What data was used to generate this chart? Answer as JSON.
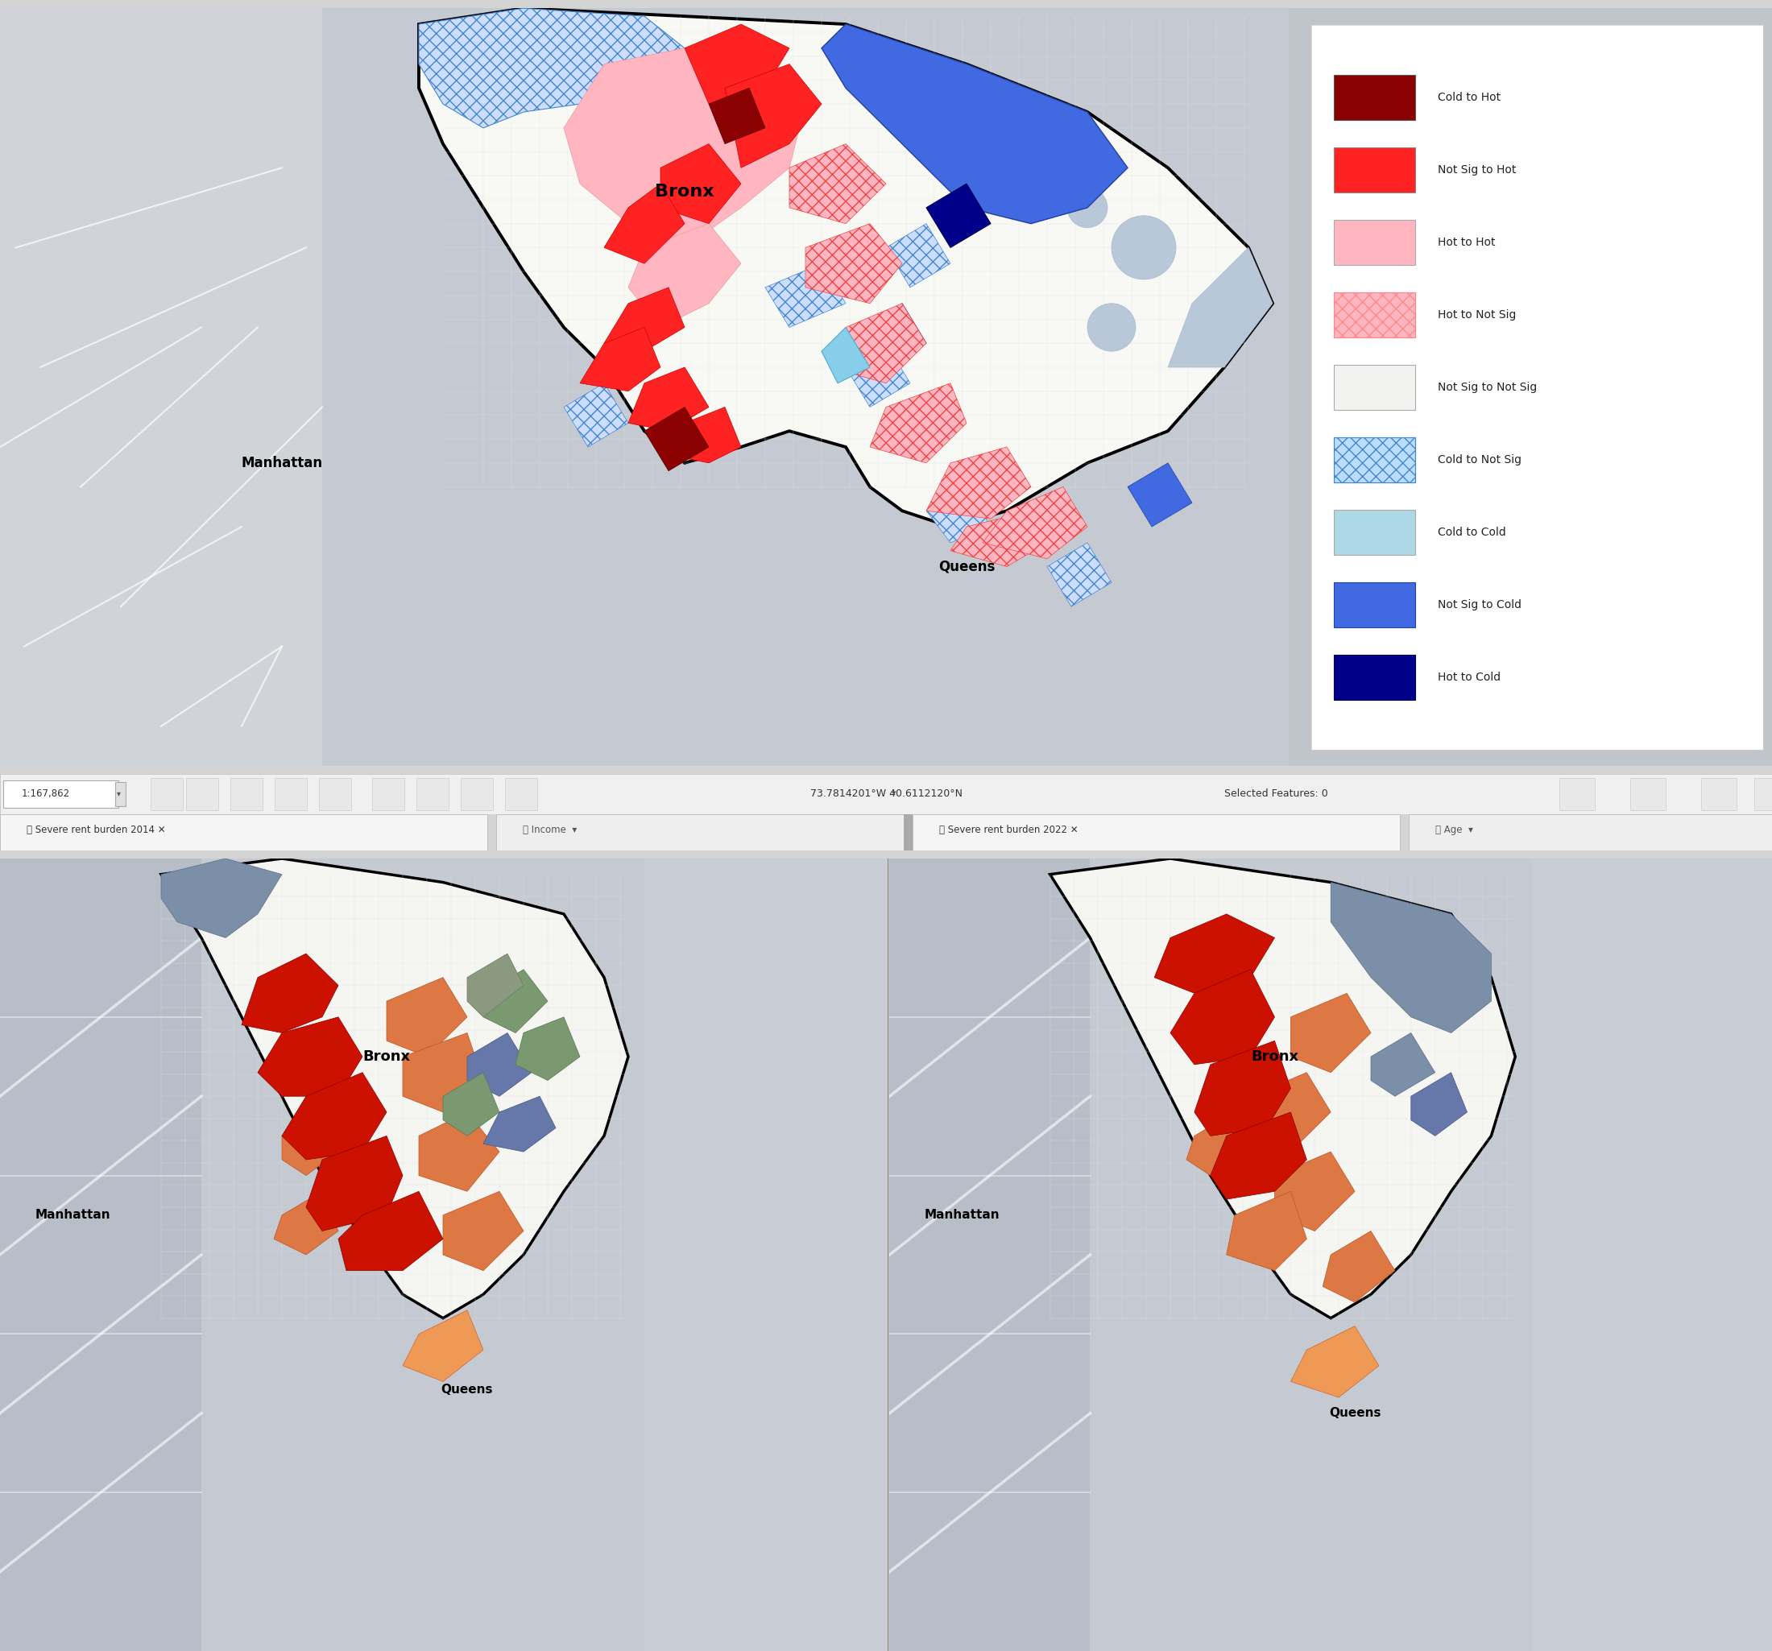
{
  "legend_items": [
    {
      "label": "Cold to Hot",
      "color": "#8B0000",
      "hatch": null,
      "edge": "#555555"
    },
    {
      "label": "Not Sig to Hot",
      "color": "#FF2222",
      "hatch": null,
      "edge": "#888888"
    },
    {
      "label": "Hot to Hot",
      "color": "#FFB6C1",
      "hatch": null,
      "edge": "#aaaaaa"
    },
    {
      "label": "Hot to Not Sig",
      "color": "#FFB6C1",
      "hatch": "xx",
      "edge": "#FF8888"
    },
    {
      "label": "Not Sig to Not Sig",
      "color": "#F2F2F0",
      "hatch": null,
      "edge": "#aaaaaa"
    },
    {
      "label": "Cold to Not Sig",
      "color": "#BBDDFF",
      "hatch": "xx",
      "edge": "#4488CC"
    },
    {
      "label": "Cold to Cold",
      "color": "#ADD8E6",
      "hatch": null,
      "edge": "#aaaaaa"
    },
    {
      "label": "Not Sig to Cold",
      "color": "#4169E1",
      "hatch": null,
      "edge": "#2244AA"
    },
    {
      "label": "Hot to Cold",
      "color": "#00008B",
      "hatch": null,
      "edge": "#000044"
    }
  ],
  "toolbar_text": "1:167,862",
  "coord_text": "73.7814201°W 40.6112120°N",
  "selected_text": "Selected Features: 0",
  "tab1_left": "Severe rent burden 2014",
  "tab1_right": "Income",
  "tab2_left": "Severe rent burden 2022",
  "tab2_right": "Age",
  "outer_bg": "#d4d4d4",
  "map_outer_bg": "#c8cdd4",
  "map_land_bg": "#e8e8e8",
  "borough_fill": "#f8f8f5",
  "road_color": "#ffffff",
  "grid_color": "#dddddd",
  "toolbar_bg": "#f0f0f0",
  "tab_active_bg": "#ffffff",
  "tab_inactive_bg": "#e8e8e8"
}
